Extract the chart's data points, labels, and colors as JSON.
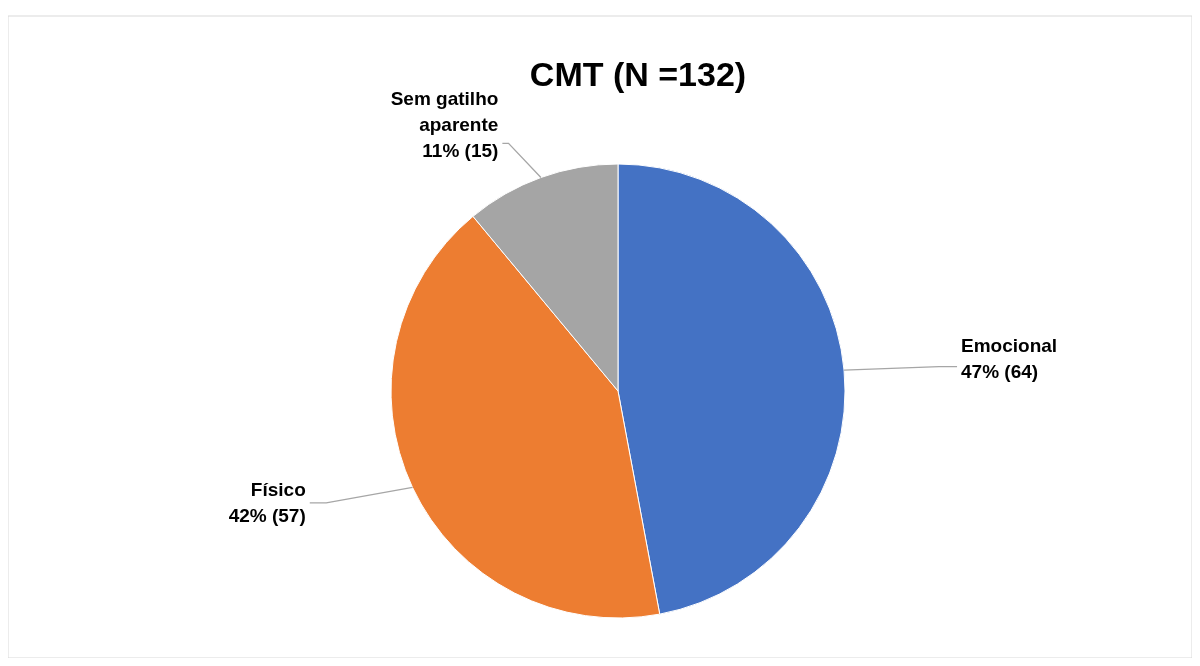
{
  "chart_data": {
    "type": "pie",
    "title": "CMT (N =132)",
    "categories": [
      "Emocional",
      "Físico",
      "Sem gatilho aparente"
    ],
    "values": [
      64,
      57,
      15
    ],
    "value_labels": [
      "47% (64)",
      "42% (57)",
      "11% (15)"
    ],
    "colors": [
      "#4472c4",
      "#ed7d31",
      "#a5a5a5"
    ]
  }
}
